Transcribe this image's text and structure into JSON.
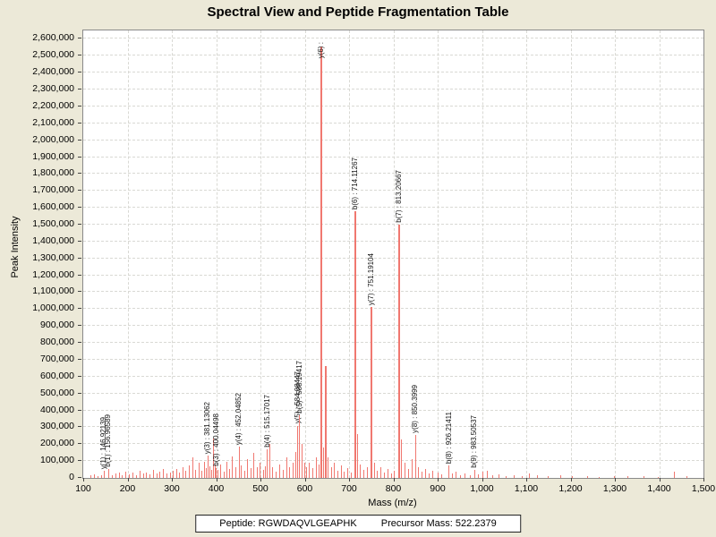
{
  "title": "Spectral View and Peptide Fragmentation Table",
  "footer": {
    "peptide": "Peptide: RGWDAQVLGEAPHK",
    "precursor": "Precursor Mass: 522.2379"
  },
  "chart_data": {
    "type": "bar",
    "subtype": "mass-spectrum",
    "title": "Spectral View and Peptide Fragmentation Table",
    "xlabel": "Mass (m/z)",
    "ylabel": "Peak Intensity",
    "xlim": [
      100,
      1500
    ],
    "ylim": [
      0,
      2600000
    ],
    "plot_ymax": 2650000,
    "x_tick_step": 100,
    "y_tick_step": 100000,
    "grid": true,
    "bar_color": "#f07870",
    "labeled_peaks": [
      {
        "label": "y(1) : 146.92139",
        "mz": 146.92139,
        "intensity": 40000
      },
      {
        "label": "b(1) : 156.96589",
        "mz": 156.96589,
        "intensity": 55000
      },
      {
        "label": "y(3) : 381.13062",
        "mz": 381.13062,
        "intensity": 130000
      },
      {
        "label": "b(3) : 400.04498",
        "mz": 400.04498,
        "intensity": 60000
      },
      {
        "label": "y(4) : 452.04852",
        "mz": 452.04852,
        "intensity": 185000
      },
      {
        "label": "b(4) : 515.17017",
        "mz": 515.17017,
        "intensity": 170000
      },
      {
        "label": "y(5) : 584.08447",
        "mz": 584.08447,
        "intensity": 310000
      },
      {
        "label": "b(5) : 588.19417",
        "mz": 588.19417,
        "intensity": 370000
      },
      {
        "label": "y(6) :",
        "mz": 638.2,
        "intensity": 2555000
      },
      {
        "label": "b(6) : 714.11267",
        "mz": 714.11267,
        "intensity": 1580000
      },
      {
        "label": "y(7) : 751.19104",
        "mz": 751.19104,
        "intensity": 1010000
      },
      {
        "label": "b(7) : 813.20667",
        "mz": 813.20667,
        "intensity": 1500000
      },
      {
        "label": "y(8) : 850.3999",
        "mz": 850.3999,
        "intensity": 255000
      },
      {
        "label": "b(8) : 926.21411",
        "mz": 926.21411,
        "intensity": 75000
      },
      {
        "label": "b(9) : 983.50537",
        "mz": 983.50537,
        "intensity": 50000
      }
    ],
    "noise_peaks": [
      [
        118,
        15000
      ],
      [
        126,
        22000
      ],
      [
        133,
        12000
      ],
      [
        141,
        18000
      ],
      [
        158,
        10000
      ],
      [
        166,
        14000
      ],
      [
        174,
        26000
      ],
      [
        181,
        32000
      ],
      [
        188,
        16000
      ],
      [
        196,
        36000
      ],
      [
        205,
        20000
      ],
      [
        213,
        30000
      ],
      [
        221,
        16000
      ],
      [
        228,
        42000
      ],
      [
        236,
        24000
      ],
      [
        243,
        34000
      ],
      [
        251,
        20000
      ],
      [
        258,
        46000
      ],
      [
        266,
        28000
      ],
      [
        273,
        38000
      ],
      [
        281,
        52000
      ],
      [
        289,
        24000
      ],
      [
        296,
        32000
      ],
      [
        304,
        40000
      ],
      [
        311,
        52000
      ],
      [
        318,
        30000
      ],
      [
        325,
        62000
      ],
      [
        332,
        42000
      ],
      [
        339,
        72000
      ],
      [
        348,
        120000
      ],
      [
        354,
        48000
      ],
      [
        361,
        88000
      ],
      [
        368,
        40000
      ],
      [
        374,
        94000
      ],
      [
        378,
        60000
      ],
      [
        386,
        70000
      ],
      [
        390,
        50000
      ],
      [
        393,
        235000
      ],
      [
        397,
        80000
      ],
      [
        405,
        46000
      ],
      [
        411,
        82000
      ],
      [
        418,
        36000
      ],
      [
        424,
        96000
      ],
      [
        430,
        52000
      ],
      [
        437,
        128000
      ],
      [
        444,
        62000
      ],
      [
        457,
        72000
      ],
      [
        464,
        42000
      ],
      [
        471,
        112000
      ],
      [
        478,
        56000
      ],
      [
        485,
        150000
      ],
      [
        492,
        66000
      ],
      [
        499,
        92000
      ],
      [
        507,
        46000
      ],
      [
        511,
        70000
      ],
      [
        521,
        200000
      ],
      [
        528,
        62000
      ],
      [
        536,
        36000
      ],
      [
        544,
        82000
      ],
      [
        552,
        46000
      ],
      [
        559,
        122000
      ],
      [
        566,
        66000
      ],
      [
        573,
        92000
      ],
      [
        579,
        152000
      ],
      [
        594,
        200000
      ],
      [
        599,
        92000
      ],
      [
        605,
        62000
      ],
      [
        611,
        90000
      ],
      [
        618,
        60000
      ],
      [
        626,
        122000
      ],
      [
        632,
        82000
      ],
      [
        643,
        180000
      ],
      [
        648,
        660000
      ],
      [
        653,
        120000
      ],
      [
        660,
        62000
      ],
      [
        667,
        92000
      ],
      [
        674,
        42000
      ],
      [
        682,
        72000
      ],
      [
        689,
        36000
      ],
      [
        697,
        56000
      ],
      [
        705,
        30000
      ],
      [
        719,
        260000
      ],
      [
        726,
        82000
      ],
      [
        733,
        46000
      ],
      [
        741,
        62000
      ],
      [
        757,
        92000
      ],
      [
        764,
        42000
      ],
      [
        771,
        66000
      ],
      [
        779,
        32000
      ],
      [
        787,
        52000
      ],
      [
        795,
        26000
      ],
      [
        803,
        42000
      ],
      [
        819,
        230000
      ],
      [
        827,
        92000
      ],
      [
        834,
        52000
      ],
      [
        842,
        112000
      ],
      [
        857,
        62000
      ],
      [
        864,
        36000
      ],
      [
        872,
        52000
      ],
      [
        880,
        26000
      ],
      [
        889,
        42000
      ],
      [
        901,
        30000
      ],
      [
        910,
        20000
      ],
      [
        934,
        26000
      ],
      [
        942,
        36000
      ],
      [
        951,
        16000
      ],
      [
        962,
        28000
      ],
      [
        973,
        18000
      ],
      [
        992,
        20000
      ],
      [
        1003,
        35000
      ],
      [
        1012,
        45000
      ],
      [
        1024,
        16000
      ],
      [
        1038,
        22000
      ],
      [
        1055,
        12000
      ],
      [
        1072,
        18000
      ],
      [
        1090,
        10000
      ],
      [
        1108,
        26000
      ],
      [
        1125,
        14000
      ],
      [
        1150,
        10000
      ],
      [
        1178,
        16000
      ],
      [
        1205,
        9000
      ],
      [
        1238,
        13000
      ],
      [
        1265,
        8000
      ],
      [
        1298,
        12000
      ],
      [
        1330,
        9000
      ],
      [
        1365,
        11000
      ],
      [
        1398,
        8000
      ],
      [
        1435,
        38000
      ],
      [
        1462,
        10000
      ]
    ]
  }
}
